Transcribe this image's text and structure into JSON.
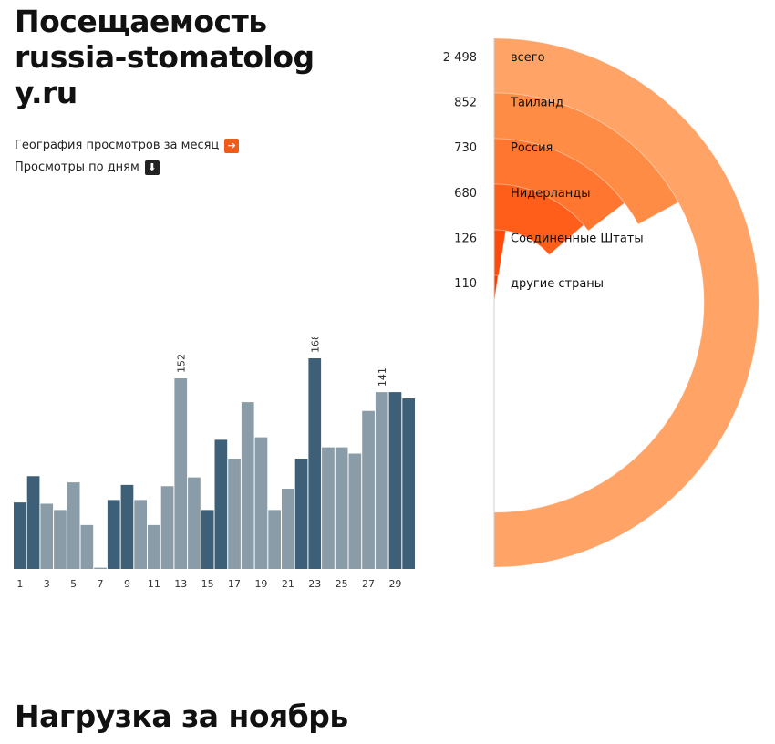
{
  "header": {
    "title_line1": "Посещаемость",
    "title_line2": "russia-stomatolog",
    "title_line3": "y.ru"
  },
  "links": {
    "geo_label": "География просмотров за месяц",
    "geo_icon": "arrow-right-icon",
    "days_label": "Просмотры по дням",
    "days_icon": "arrow-down-icon"
  },
  "colors": {
    "bar_dark": "#3e5f78",
    "bar_light": "#8a9ca8",
    "ring_total": "#ffa366",
    "ring_1": "#ff8c45",
    "ring_2": "#ff7630",
    "ring_3": "#ff5e1a",
    "ring_4": "#ff4a0a",
    "ring_5": "#ff3a00"
  },
  "chart_data": [
    {
      "type": "bar",
      "x": [
        1,
        2,
        3,
        4,
        5,
        6,
        7,
        8,
        9,
        10,
        11,
        12,
        13,
        14,
        15,
        16,
        17,
        18,
        19,
        20,
        21,
        22,
        23,
        24,
        25,
        26,
        27,
        28,
        29,
        30
      ],
      "values": [
        53,
        74,
        52,
        47,
        69,
        35,
        1,
        55,
        67,
        55,
        35,
        66,
        152,
        73,
        47,
        103,
        88,
        133,
        105,
        47,
        64,
        88,
        168,
        97,
        97,
        92,
        126,
        141,
        141,
        136
      ],
      "shade": [
        "dark",
        "dark",
        "light",
        "light",
        "light",
        "light",
        "light",
        "dark",
        "dark",
        "light",
        "light",
        "light",
        "light",
        "light",
        "dark",
        "dark",
        "light",
        "light",
        "light",
        "light",
        "light",
        "dark",
        "dark",
        "light",
        "light",
        "light",
        "light",
        "light",
        "dark",
        "dark"
      ],
      "tick_labels": [
        "1",
        "3",
        "5",
        "7",
        "9",
        "11",
        "13",
        "15",
        "17",
        "19",
        "21",
        "23",
        "25",
        "27",
        "29"
      ],
      "data_labels": [
        {
          "x": 13,
          "text": "152"
        },
        {
          "x": 23,
          "text": "168"
        },
        {
          "x": 28,
          "text": "141"
        }
      ],
      "ylim": [
        0,
        168
      ]
    },
    {
      "type": "pie",
      "categories": [
        "всего",
        "Таиланд",
        "Россия",
        "Нидерланды",
        "Соединенные Штаты",
        "другие страны"
      ],
      "values": [
        2498,
        852,
        730,
        680,
        126,
        110
      ],
      "value_labels": [
        "2 498",
        "852",
        "730",
        "680",
        "126",
        "110"
      ]
    }
  ],
  "footer": {
    "section_title": "Нагрузка за ноябрь"
  }
}
